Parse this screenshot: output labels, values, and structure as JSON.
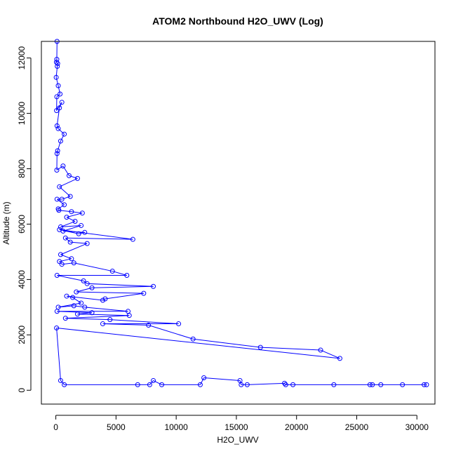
{
  "chart_data": {
    "type": "line",
    "title": "ATOM2 Northbound H2O_UWV (Log)",
    "xlabel": "H2O_UWV",
    "ylabel": "Altitude (m)",
    "xlim": [
      -1200,
      31500
    ],
    "ylim": [
      -500,
      12600
    ],
    "xticks": [
      0,
      5000,
      10000,
      15000,
      20000,
      25000,
      30000
    ],
    "yticks": [
      0,
      2000,
      4000,
      6000,
      8000,
      10000,
      12000
    ],
    "grid": false,
    "marker": "open-circle",
    "series_color": "#0000ff",
    "series": [
      {
        "points": [
          [
            100,
            12600
          ],
          [
            80,
            11950
          ],
          [
            50,
            11850
          ],
          [
            150,
            11800
          ],
          [
            120,
            11700
          ],
          [
            30,
            11300
          ],
          [
            200,
            11000
          ],
          [
            350,
            10700
          ],
          [
            80,
            10600
          ],
          [
            60,
            10100
          ],
          [
            500,
            10400
          ],
          [
            300,
            10200
          ],
          [
            100,
            9550
          ],
          [
            200,
            9450
          ],
          [
            700,
            9250
          ],
          [
            400,
            9000
          ],
          [
            150,
            8650
          ],
          [
            100,
            8550
          ],
          [
            80,
            7950
          ],
          [
            600,
            8100
          ],
          [
            1100,
            7750
          ],
          [
            1800,
            7650
          ],
          [
            300,
            7350
          ],
          [
            1200,
            7000
          ],
          [
            500,
            6900
          ],
          [
            100,
            6900
          ],
          [
            700,
            6700
          ],
          [
            200,
            6550
          ],
          [
            250,
            6500
          ],
          [
            1300,
            6450
          ],
          [
            2200,
            6400
          ],
          [
            900,
            6250
          ],
          [
            1600,
            6100
          ],
          [
            400,
            5900
          ],
          [
            2100,
            5950
          ],
          [
            600,
            5750
          ],
          [
            2400,
            5700
          ],
          [
            1900,
            5650
          ],
          [
            300,
            5800
          ],
          [
            6400,
            5450
          ],
          [
            800,
            5500
          ],
          [
            1200,
            5350
          ],
          [
            2600,
            5300
          ],
          [
            400,
            4900
          ],
          [
            1300,
            4750
          ],
          [
            300,
            4650
          ],
          [
            500,
            4550
          ],
          [
            1500,
            4600
          ],
          [
            4700,
            4300
          ],
          [
            5900,
            4150
          ],
          [
            100,
            4150
          ],
          [
            2300,
            3950
          ],
          [
            2600,
            3850
          ],
          [
            8100,
            3750
          ],
          [
            3000,
            3700
          ],
          [
            1700,
            3550
          ],
          [
            7300,
            3500
          ],
          [
            4100,
            3300
          ],
          [
            3900,
            3250
          ],
          [
            900,
            3400
          ],
          [
            1400,
            3350
          ],
          [
            2100,
            3150
          ],
          [
            200,
            3000
          ],
          [
            1500,
            3050
          ],
          [
            2400,
            3000
          ],
          [
            6000,
            2850
          ],
          [
            100,
            2850
          ],
          [
            3000,
            2800
          ],
          [
            1800,
            2750
          ],
          [
            6100,
            2700
          ],
          [
            800,
            2600
          ],
          [
            4500,
            2550
          ],
          [
            10200,
            2400
          ],
          [
            3900,
            2400
          ],
          [
            7700,
            2350
          ],
          [
            11400,
            1850
          ],
          [
            17000,
            1550
          ],
          [
            22000,
            1450
          ],
          [
            23600,
            1150
          ],
          [
            60,
            2250
          ],
          [
            400,
            350
          ],
          [
            700,
            200
          ],
          [
            6800,
            200
          ],
          [
            7800,
            200
          ],
          [
            8100,
            350
          ],
          [
            8800,
            200
          ],
          [
            12000,
            200
          ],
          [
            12300,
            450
          ],
          [
            15300,
            350
          ],
          [
            15400,
            200
          ],
          [
            15900,
            200
          ],
          [
            19000,
            250
          ],
          [
            19100,
            200
          ],
          [
            19700,
            200
          ],
          [
            23100,
            200
          ],
          [
            26100,
            200
          ],
          [
            26300,
            200
          ],
          [
            27000,
            200
          ],
          [
            28800,
            200
          ],
          [
            30600,
            200
          ],
          [
            30800,
            200
          ]
        ]
      }
    ]
  }
}
